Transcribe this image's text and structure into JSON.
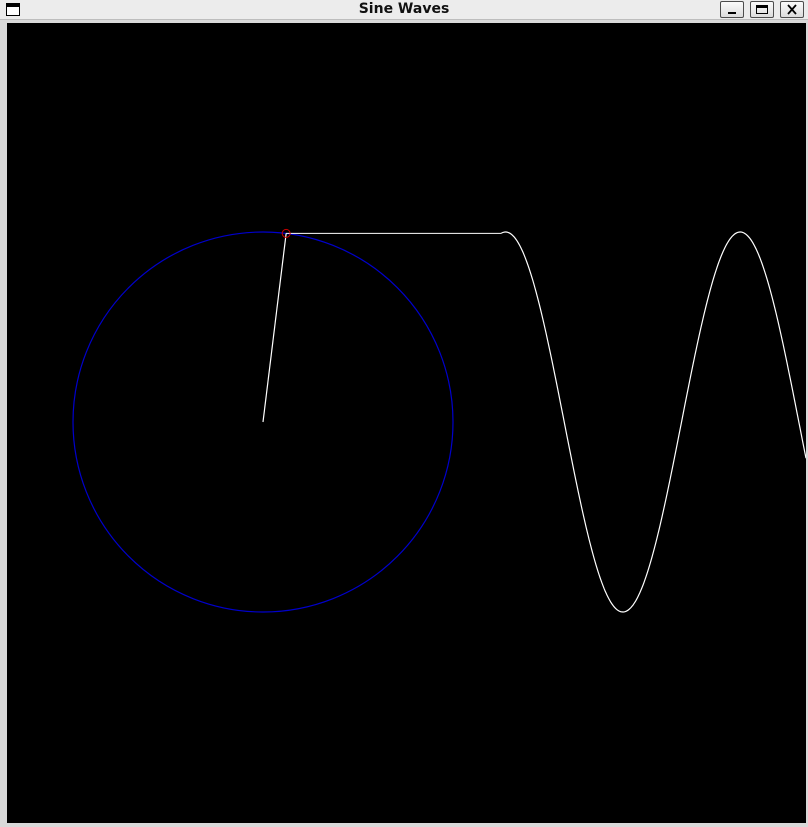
{
  "window": {
    "title": "Sine Waves"
  },
  "titlebar_buttons": {
    "minimize_icon": "minimize-icon",
    "maximize_icon": "maximize-icon",
    "close_icon": "close-icon"
  },
  "scene": {
    "angle_degrees": 83,
    "wave_cycles_visible": 1.3,
    "colors": {
      "background": "#000000",
      "circle": "#0000cc",
      "radius_line": "#ffffff",
      "wave": "#ffffff",
      "marker": "#cc0000"
    }
  }
}
